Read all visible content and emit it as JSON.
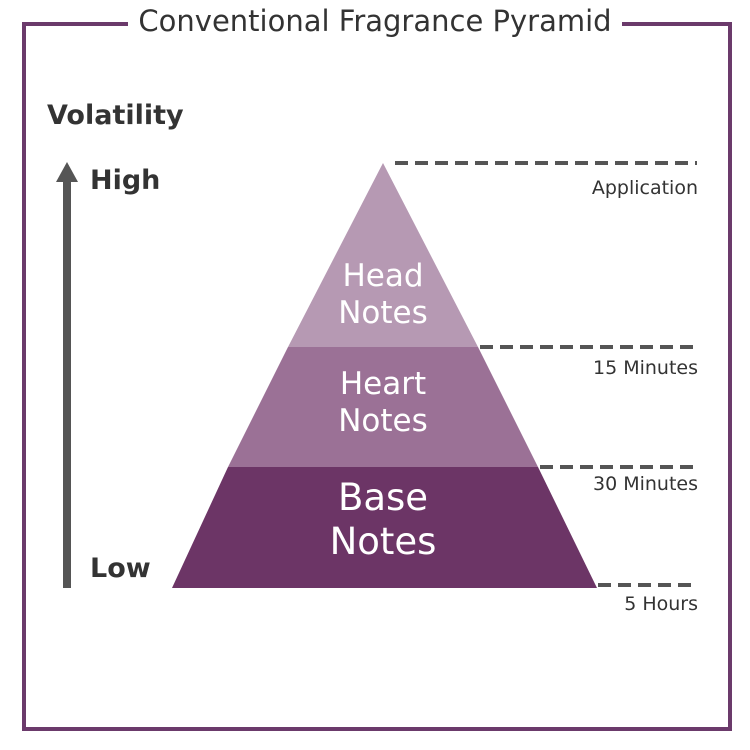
{
  "title": "Conventional Fragrance Pyramid",
  "axis": {
    "label": "Volatility",
    "high": "High",
    "low": "Low"
  },
  "layers": [
    {
      "label_line1": "Head",
      "label_line2": "Notes",
      "color": "#b699b3"
    },
    {
      "label_line1": "Heart",
      "label_line2": "Notes",
      "color": "#9b7196"
    },
    {
      "label_line1": "Base",
      "label_line2": "Notes",
      "color": "#6c3566"
    }
  ],
  "times": [
    "Application",
    "15 Minutes",
    "30 Minutes",
    "5 Hours"
  ],
  "colors": {
    "frame": "#6b3a6b",
    "dash": "#555555",
    "arrow": "#555555"
  }
}
